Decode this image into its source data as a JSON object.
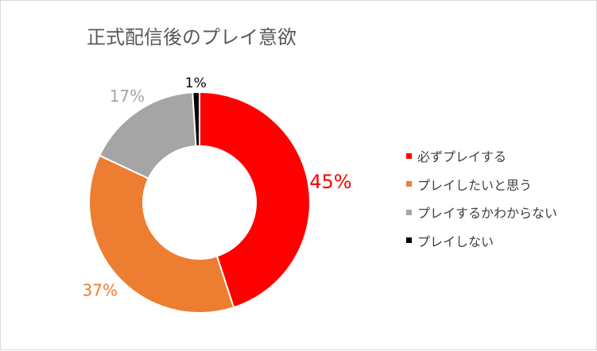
{
  "chart_data": {
    "type": "pie",
    "title": "正式配信後のプレイ意欲",
    "donut": true,
    "legend_position": "right",
    "categories": [
      "必ずプレイする",
      "プレイしたいと思う",
      "プレイするかわからない",
      "プレイしない"
    ],
    "values": [
      45,
      37,
      17,
      1
    ],
    "labels": [
      "45%",
      "37%",
      "17%",
      "1%"
    ],
    "colors": [
      "#ff0000",
      "#ed7d31",
      "#a5a5a5",
      "#000000"
    ]
  }
}
